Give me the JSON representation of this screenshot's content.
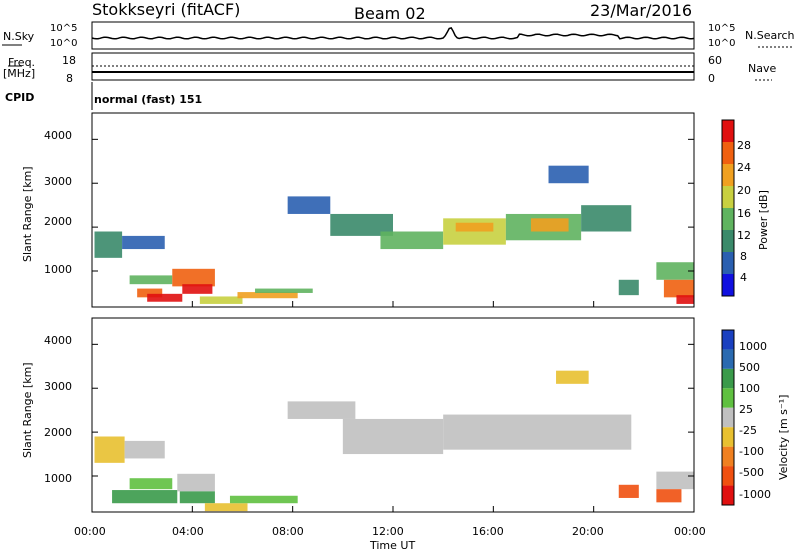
{
  "header": {
    "station": "Stokkseyri (fitACF)",
    "beam": "Beam 02",
    "date": "23/Mar/2016"
  },
  "status_panels": {
    "nsky_label": "N.Sky",
    "nsky_tick_top": "10^5",
    "nsky_tick_bottom": "10^0",
    "nsearch_label": "N.Search",
    "nsearch_tick_top": "10^5",
    "nsearch_tick_bottom": "10^0",
    "freq_label": "Freq.",
    "freq_unit": "[MHz]",
    "freq_tick_top": "18",
    "freq_tick_bottom": "8",
    "nave_label": "Nave",
    "nave_tick_top": "60",
    "nave_tick_bottom": "0",
    "cpid_label": "CPID",
    "cpid_value": "normal (fast) 151"
  },
  "colors": {
    "power_scale": [
      "#1010e0",
      "#2a5fb0",
      "#3a8a6a",
      "#5fb35f",
      "#c8d040",
      "#f0a020",
      "#f06010",
      "#e01010"
    ],
    "velocity_scale": [
      "#e01010",
      "#f05010",
      "#f08020",
      "#e8c030",
      "#c0c0c0",
      "#5fc040",
      "#3a9a4a",
      "#2a6ab0",
      "#1a40c0"
    ]
  },
  "chart_data": [
    {
      "type": "heatmap",
      "panel": "power",
      "ylabel": "Slant Range [km]",
      "y_ticks": [
        "1000",
        "2000",
        "3000",
        "4000"
      ],
      "x_ticks": [
        "00:00",
        "04:00",
        "08:00",
        "12:00",
        "16:00",
        "20:00",
        "00:00"
      ],
      "colorbar": {
        "label": "Power [dB]",
        "ticks": [
          "4",
          "8",
          "12",
          "16",
          "20",
          "24",
          "28"
        ]
      },
      "ylim": [
        180,
        4600
      ],
      "xlim_hours": [
        0,
        24
      ],
      "regions": [
        {
          "t0": 0.1,
          "t1": 1.2,
          "r0": 1300,
          "r1": 1900,
          "level": 2
        },
        {
          "t0": 1.2,
          "t1": 2.9,
          "r0": 1500,
          "r1": 1800,
          "level": 1
        },
        {
          "t0": 1.5,
          "t1": 3.2,
          "r0": 700,
          "r1": 900,
          "level": 3
        },
        {
          "t0": 1.8,
          "t1": 2.8,
          "r0": 400,
          "r1": 600,
          "level": 6
        },
        {
          "t0": 2.2,
          "t1": 3.6,
          "r0": 300,
          "r1": 480,
          "level": 7
        },
        {
          "t0": 3.2,
          "t1": 4.9,
          "r0": 650,
          "r1": 1050,
          "level": 6
        },
        {
          "t0": 3.6,
          "t1": 4.8,
          "r0": 480,
          "r1": 700,
          "level": 7
        },
        {
          "t0": 4.3,
          "t1": 6.0,
          "r0": 250,
          "r1": 420,
          "level": 4
        },
        {
          "t0": 5.8,
          "t1": 8.2,
          "r0": 380,
          "r1": 520,
          "level": 5
        },
        {
          "t0": 6.5,
          "t1": 8.8,
          "r0": 500,
          "r1": 600,
          "level": 3
        },
        {
          "t0": 7.8,
          "t1": 9.5,
          "r0": 2300,
          "r1": 2700,
          "level": 1
        },
        {
          "t0": 9.5,
          "t1": 12.0,
          "r0": 1800,
          "r1": 2300,
          "level": 2
        },
        {
          "t0": 11.5,
          "t1": 14.0,
          "r0": 1500,
          "r1": 1900,
          "level": 3
        },
        {
          "t0": 14.0,
          "t1": 16.5,
          "r0": 1600,
          "r1": 2200,
          "level": 4
        },
        {
          "t0": 14.5,
          "t1": 16.0,
          "r0": 1900,
          "r1": 2100,
          "level": 5
        },
        {
          "t0": 16.5,
          "t1": 19.5,
          "r0": 1700,
          "r1": 2300,
          "level": 3
        },
        {
          "t0": 17.5,
          "t1": 19.0,
          "r0": 1900,
          "r1": 2200,
          "level": 5
        },
        {
          "t0": 19.5,
          "t1": 21.5,
          "r0": 1900,
          "r1": 2500,
          "level": 2
        },
        {
          "t0": 18.2,
          "t1": 19.8,
          "r0": 3000,
          "r1": 3400,
          "level": 1
        },
        {
          "t0": 21.0,
          "t1": 21.8,
          "r0": 450,
          "r1": 800,
          "level": 2
        },
        {
          "t0": 22.5,
          "t1": 24.0,
          "r0": 800,
          "r1": 1200,
          "level": 3
        },
        {
          "t0": 22.8,
          "t1": 24.0,
          "r0": 400,
          "r1": 800,
          "level": 6
        },
        {
          "t0": 23.3,
          "t1": 24.0,
          "r0": 250,
          "r1": 450,
          "level": 7
        }
      ]
    },
    {
      "type": "heatmap",
      "panel": "velocity",
      "ylabel": "Slant Range [km]",
      "y_ticks": [
        "1000",
        "2000",
        "3000",
        "4000"
      ],
      "x_ticks": [
        "00:00",
        "04:00",
        "08:00",
        "12:00",
        "16:00",
        "20:00",
        "00:00"
      ],
      "xlabel": "Time UT",
      "colorbar": {
        "label": "Velocity [m s⁻¹]",
        "ticks": [
          "1000",
          "500",
          "100",
          "25",
          "-25",
          "-100",
          "-500",
          "-1000"
        ]
      },
      "ylim": [
        180,
        4600
      ],
      "xlim_hours": [
        0,
        24
      ],
      "regions": [
        {
          "t0": 0.1,
          "t1": 1.3,
          "r0": 1300,
          "r1": 1900,
          "level": 3
        },
        {
          "t0": 1.3,
          "t1": 2.9,
          "r0": 1400,
          "r1": 1800,
          "level": 4
        },
        {
          "t0": 1.5,
          "t1": 3.2,
          "r0": 700,
          "r1": 950,
          "level": 5
        },
        {
          "t0": 0.8,
          "t1": 3.4,
          "r0": 380,
          "r1": 680,
          "level": 6
        },
        {
          "t0": 3.4,
          "t1": 4.9,
          "r0": 650,
          "r1": 1050,
          "level": 4
        },
        {
          "t0": 3.5,
          "t1": 4.9,
          "r0": 380,
          "r1": 650,
          "level": 6
        },
        {
          "t0": 4.5,
          "t1": 6.2,
          "r0": 200,
          "r1": 380,
          "level": 3
        },
        {
          "t0": 5.5,
          "t1": 8.2,
          "r0": 380,
          "r1": 550,
          "level": 5
        },
        {
          "t0": 7.8,
          "t1": 10.5,
          "r0": 2300,
          "r1": 2700,
          "level": 4
        },
        {
          "t0": 10.0,
          "t1": 14.0,
          "r0": 1500,
          "r1": 2300,
          "level": 4
        },
        {
          "t0": 14.0,
          "t1": 21.5,
          "r0": 1600,
          "r1": 2400,
          "level": 4
        },
        {
          "t0": 18.5,
          "t1": 19.8,
          "r0": 3100,
          "r1": 3400,
          "level": 3
        },
        {
          "t0": 21.0,
          "t1": 21.8,
          "r0": 500,
          "r1": 800,
          "level": 1
        },
        {
          "t0": 22.5,
          "t1": 24.0,
          "r0": 700,
          "r1": 1100,
          "level": 4
        },
        {
          "t0": 22.5,
          "t1": 23.5,
          "r0": 400,
          "r1": 700,
          "level": 1
        }
      ]
    }
  ]
}
